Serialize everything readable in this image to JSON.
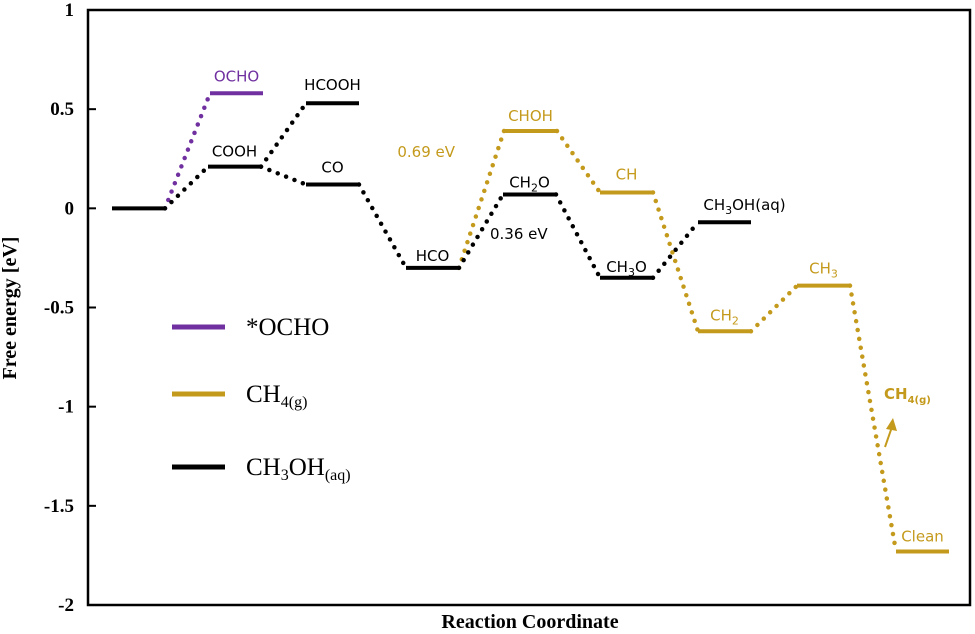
{
  "chart_data": {
    "type": "line",
    "subtype": "free-energy-diagram",
    "xlabel": "Reaction Coordinate",
    "ylabel": "Free energy [eV]",
    "ylim": [
      -2,
      1
    ],
    "yticks": [
      {
        "value": 1,
        "label": "1"
      },
      {
        "value": 0.5,
        "label": "0.5"
      },
      {
        "value": 0,
        "label": "0"
      },
      {
        "value": -0.5,
        "label": "-0.5"
      },
      {
        "value": -1,
        "label": "-1"
      },
      {
        "value": -1.5,
        "label": "-1.5"
      },
      {
        "value": -2,
        "label": "-2"
      }
    ],
    "grid": false,
    "legend_position": "left-middle",
    "colors": {
      "ocho": "#7030a0",
      "ch4": "#c49a1c",
      "ch3oh": "#000000"
    },
    "legend": [
      {
        "key": "ocho",
        "label": "*OCHO"
      },
      {
        "key": "ch4",
        "label": "CH",
        "sub1": "4(g)"
      },
      {
        "key": "ch3oh",
        "label": "CH",
        "sub1": "3",
        "mid": "OH",
        "sub2": "(aq)"
      }
    ],
    "states": [
      {
        "id": "start",
        "step": 1,
        "energy": 0.0,
        "label": "",
        "color": "ch3oh"
      },
      {
        "id": "ocho",
        "step": 2,
        "energy": 0.58,
        "label": "OCHO",
        "color": "ocho"
      },
      {
        "id": "cooh",
        "step": 2,
        "energy": 0.21,
        "label": "COOH",
        "color": "ch3oh"
      },
      {
        "id": "hcooh",
        "step": 3,
        "energy": 0.53,
        "label": "HCOOH",
        "color": "ch3oh"
      },
      {
        "id": "co",
        "step": 3,
        "energy": 0.12,
        "label": "CO",
        "color": "ch3oh"
      },
      {
        "id": "hco",
        "step": 4,
        "energy": -0.3,
        "label": "HCO",
        "color": "ch3oh"
      },
      {
        "id": "choh",
        "step": 5,
        "energy": 0.39,
        "label": "CHOH",
        "color": "ch4"
      },
      {
        "id": "ch2o",
        "step": 5,
        "energy": 0.07,
        "label": "CH",
        "sub": "2",
        "tail": "O",
        "color": "ch3oh"
      },
      {
        "id": "ch",
        "step": 6,
        "energy": 0.08,
        "label": "CH",
        "color": "ch4"
      },
      {
        "id": "ch3o",
        "step": 6,
        "energy": -0.35,
        "label": "CH",
        "sub": "3",
        "tail": "O",
        "color": "ch3oh"
      },
      {
        "id": "ch3oh",
        "step": 7,
        "energy": -0.07,
        "label": "CH",
        "sub": "3",
        "tail": "OH(aq)",
        "color": "ch3oh"
      },
      {
        "id": "ch2",
        "step": 7,
        "energy": -0.62,
        "label": "CH",
        "sub": "2",
        "color": "ch4"
      },
      {
        "id": "ch3",
        "step": 8,
        "energy": -0.39,
        "label": "CH",
        "sub": "3",
        "color": "ch4"
      },
      {
        "id": "clean",
        "step": 9,
        "energy": -1.73,
        "label": "Clean",
        "color": "ch4"
      }
    ],
    "connections": [
      {
        "from": "start",
        "to": "ocho",
        "color": "ocho"
      },
      {
        "from": "start",
        "to": "cooh",
        "color": "ch3oh"
      },
      {
        "from": "cooh",
        "to": "hcooh",
        "color": "ch3oh"
      },
      {
        "from": "cooh",
        "to": "co",
        "color": "ch3oh"
      },
      {
        "from": "co",
        "to": "hco",
        "color": "ch3oh"
      },
      {
        "from": "hco",
        "to": "choh",
        "color": "ch4"
      },
      {
        "from": "hco",
        "to": "ch2o",
        "color": "ch3oh"
      },
      {
        "from": "choh",
        "to": "ch",
        "color": "ch4"
      },
      {
        "from": "ch2o",
        "to": "ch3o",
        "color": "ch3oh"
      },
      {
        "from": "ch",
        "to": "ch2",
        "color": "ch4"
      },
      {
        "from": "ch3o",
        "to": "ch3oh",
        "color": "ch3oh"
      },
      {
        "from": "ch2",
        "to": "ch3",
        "color": "ch4"
      },
      {
        "from": "ch3",
        "to": "clean",
        "color": "ch4"
      }
    ],
    "annotations": [
      {
        "id": "barrier-ch4",
        "text": "0.69 eV",
        "color": "ch4"
      },
      {
        "id": "barrier-ch3oh",
        "text": "0.36 eV",
        "color": "ch3oh"
      },
      {
        "id": "ch4-release",
        "text": "CH",
        "sub": "4(g)",
        "color": "ch4",
        "bold": true
      }
    ]
  }
}
